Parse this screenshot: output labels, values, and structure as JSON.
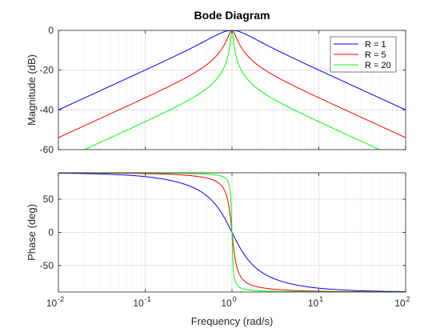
{
  "chart_data": {
    "type": "line",
    "title": "Bode Diagram",
    "xlabel": "Frequency (rad/s)",
    "x_scale": "log",
    "xlim": [
      0.01,
      100
    ],
    "x_tick_labels": [
      "10",
      "10",
      "10",
      "10",
      "10"
    ],
    "x_tick_exponents": [
      "-2",
      "-1",
      "0",
      "1",
      "2"
    ],
    "grid": true,
    "legend_position": "top-right",
    "series": [
      {
        "name": "R = 1",
        "R": 1,
        "color": "#0000ff"
      },
      {
        "name": "R = 5",
        "R": 5,
        "color": "#ff0000"
      },
      {
        "name": "R = 20",
        "R": 20,
        "color": "#00ff00"
      }
    ],
    "panels": [
      {
        "id": "magnitude",
        "ylabel": "Magnitude (dB)",
        "ylim": [
          -60,
          0
        ],
        "y_ticks": [
          0,
          -20,
          -40,
          -60
        ],
        "y_tick_labels": [
          "0",
          "-20",
          "-40",
          "-60"
        ],
        "legend": true
      },
      {
        "id": "phase",
        "ylabel": "Phase (deg)",
        "ylim": [
          -90,
          90
        ],
        "y_ticks": [
          50,
          0,
          -50
        ],
        "y_tick_labels": [
          "50",
          "0",
          "-50"
        ],
        "legend": false
      }
    ]
  }
}
